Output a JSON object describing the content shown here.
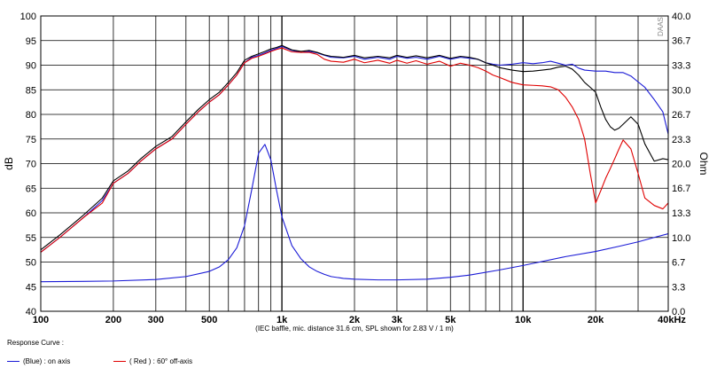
{
  "chart_data": {
    "type": "line",
    "watermark": "DAAS",
    "xlabel": "",
    "ylabel": "dB",
    "y2label": "Ohm",
    "note": "(IEC baffle, mic. distance 31.6 cm, SPL shown for 2.83 V / 1 m)",
    "x_scale": "log",
    "xlim": [
      100,
      40000
    ],
    "ylim": [
      40,
      100
    ],
    "y2lim": [
      0,
      40
    ],
    "x_ticks": [
      100,
      200,
      300,
      500,
      1000,
      2000,
      3000,
      5000,
      10000,
      20000,
      40000
    ],
    "x_tick_labels": [
      "100",
      "200",
      "300",
      "500",
      "1k",
      "2k",
      "3k",
      "5k",
      "10k",
      "20k",
      "40kHz"
    ],
    "y_ticks": [
      40,
      45,
      50,
      55,
      60,
      65,
      70,
      75,
      80,
      85,
      90,
      95,
      100
    ],
    "y_tick_labels": [
      "40",
      "45",
      "50",
      "55",
      "60",
      "65",
      "70",
      "75",
      "80",
      "85",
      "90",
      "95",
      "100"
    ],
    "y2_ticks": [
      0,
      3.33,
      6.67,
      10,
      13.33,
      16.67,
      20,
      23.33,
      26.67,
      30,
      33.33,
      36.67,
      40
    ],
    "y2_tick_labels": [
      "0.0",
      "3.3",
      "6.7",
      "10.0",
      "13.3",
      "16.7",
      "20.0",
      "23.3",
      "26.7",
      "30.0",
      "33.3",
      "36.7",
      "40.0"
    ],
    "grid": true,
    "series": [
      {
        "name": "on axis",
        "color": "#1a1ad6",
        "axis": "y",
        "x": [
          100,
          120,
          150,
          180,
          200,
          230,
          260,
          300,
          350,
          400,
          450,
          500,
          550,
          600,
          650,
          700,
          750,
          800,
          850,
          900,
          950,
          1000,
          1100,
          1200,
          1300,
          1400,
          1500,
          1600,
          1800,
          2000,
          2200,
          2500,
          2800,
          3000,
          3300,
          3600,
          4000,
          4500,
          5000,
          5500,
          6000,
          6500,
          7000,
          7500,
          8000,
          9000,
          10000,
          11000,
          12000,
          13000,
          14000,
          15000,
          16000,
          17000,
          18000,
          20000,
          22000,
          24000,
          26000,
          28000,
          30000,
          32000,
          35000,
          38000,
          40000
        ],
        "y": [
          52,
          55,
          59,
          62.5,
          66,
          68,
          70.5,
          73,
          75,
          78,
          80.5,
          82.5,
          84,
          86,
          88,
          90.5,
          91.6,
          92,
          92.5,
          93,
          93.4,
          93.8,
          93,
          92.6,
          92.8,
          92.5,
          92,
          91.6,
          91.5,
          91.8,
          91.2,
          91.6,
          91.2,
          91.8,
          91.4,
          91.6,
          91.2,
          91.8,
          91.2,
          91.6,
          91.4,
          91.2,
          90.5,
          90.2,
          90,
          90.2,
          90.5,
          90.3,
          90.5,
          90.8,
          90.4,
          90,
          90.2,
          89.4,
          89,
          88.8,
          88.8,
          88.5,
          88.5,
          87.8,
          86.6,
          85.5,
          83,
          80.5,
          76
        ]
      },
      {
        "name": "",
        "color": "#000000",
        "axis": "y",
        "x": [
          100,
          120,
          150,
          180,
          200,
          230,
          260,
          300,
          350,
          400,
          450,
          500,
          550,
          600,
          650,
          700,
          750,
          800,
          850,
          900,
          950,
          1000,
          1100,
          1200,
          1300,
          1400,
          1500,
          1600,
          1800,
          2000,
          2200,
          2500,
          2800,
          3000,
          3300,
          3600,
          4000,
          4500,
          5000,
          5500,
          6000,
          6500,
          7000,
          7500,
          8000,
          9000,
          10000,
          11000,
          12000,
          13000,
          14000,
          15000,
          16000,
          17000,
          18000,
          19000,
          20000,
          21000,
          22000,
          23000,
          24000,
          25000,
          26000,
          28000,
          30000,
          32000,
          35000,
          38000,
          40000
        ],
        "y": [
          52.5,
          55.5,
          59.5,
          63,
          66.5,
          68.5,
          71,
          73.5,
          75.5,
          78.5,
          81,
          83,
          84.5,
          86.5,
          88.5,
          91,
          91.8,
          92.3,
          92.8,
          93.3,
          93.6,
          94,
          93.1,
          92.8,
          93,
          92.6,
          92.1,
          91.8,
          91.6,
          92,
          91.5,
          91.8,
          91.5,
          92,
          91.6,
          91.9,
          91.5,
          92,
          91.4,
          91.8,
          91.6,
          91.2,
          90.5,
          90,
          89.5,
          89,
          88.7,
          88.8,
          89,
          89.2,
          89.6,
          89.8,
          89.2,
          88,
          86.5,
          85.5,
          84.5,
          81.5,
          79,
          77.5,
          76.8,
          77.2,
          78,
          79.5,
          78,
          74,
          70.5,
          71,
          70.8
        ]
      },
      {
        "name": "60° off-axis",
        "color": "#e00000",
        "axis": "y",
        "x": [
          100,
          120,
          150,
          180,
          200,
          230,
          260,
          300,
          350,
          400,
          450,
          500,
          550,
          600,
          650,
          700,
          750,
          800,
          850,
          900,
          950,
          1000,
          1100,
          1200,
          1300,
          1400,
          1500,
          1600,
          1800,
          2000,
          2200,
          2500,
          2800,
          3000,
          3300,
          3600,
          4000,
          4500,
          5000,
          5500,
          6000,
          6500,
          7000,
          7500,
          8000,
          9000,
          10000,
          11000,
          12000,
          13000,
          14000,
          15000,
          16000,
          17000,
          18000,
          19000,
          20000,
          21000,
          22000,
          23000,
          24000,
          25000,
          26000,
          28000,
          30000,
          32000,
          35000,
          38000,
          40000
        ],
        "y": [
          52,
          55,
          59,
          62,
          66,
          68,
          70.5,
          73,
          75,
          78,
          80.5,
          82.5,
          84,
          86,
          88,
          90.5,
          91.4,
          91.8,
          92.3,
          92.8,
          93.2,
          93.5,
          92.7,
          92.6,
          92.6,
          92.2,
          91.2,
          90.8,
          90.6,
          91.2,
          90.5,
          91,
          90.4,
          91,
          90.4,
          90.9,
          90.2,
          90.8,
          89.8,
          90.4,
          90,
          89.5,
          88.8,
          88,
          87.5,
          86.5,
          86,
          85.9,
          85.8,
          85.6,
          85,
          83.5,
          81.5,
          79,
          75,
          68,
          62,
          64.5,
          67,
          69,
          71,
          73,
          74.8,
          73,
          68,
          63,
          61.5,
          60.8,
          62
        ]
      },
      {
        "name": "",
        "color": "#1a1ad6",
        "axis": "y2",
        "x": [
          100,
          150,
          200,
          300,
          400,
          500,
          550,
          600,
          650,
          700,
          750,
          800,
          850,
          900,
          950,
          1000,
          1100,
          1200,
          1300,
          1400,
          1500,
          1600,
          1800,
          2000,
          2500,
          3000,
          4000,
          5000,
          6000,
          8000,
          10000,
          15000,
          20000,
          25000,
          30000,
          35000,
          40000
        ],
        "y": [
          4.0,
          4.05,
          4.1,
          4.3,
          4.7,
          5.4,
          6.0,
          7.0,
          8.6,
          11.6,
          16.5,
          21.4,
          22.6,
          20.5,
          16.4,
          12.8,
          8.9,
          7.1,
          6.0,
          5.4,
          5.0,
          4.7,
          4.45,
          4.35,
          4.25,
          4.25,
          4.35,
          4.6,
          4.9,
          5.6,
          6.2,
          7.4,
          8.1,
          8.8,
          9.4,
          10.0,
          10.5
        ]
      }
    ]
  },
  "legend": {
    "title": "Response Curve :",
    "entries": [
      {
        "label": "(Blue) : on axis",
        "color": "#1a1ad6"
      },
      {
        "label": "( Red ) : 60° off-axis",
        "color": "#e00000"
      }
    ]
  }
}
